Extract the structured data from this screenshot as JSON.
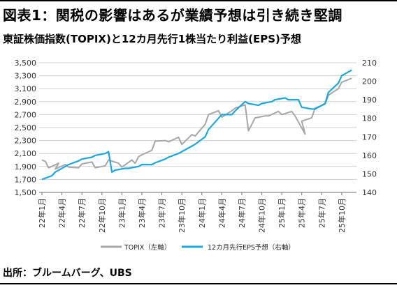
{
  "title": "図表1：関税の影響はあるが業績予想は引き続き堅調",
  "subtitle": "東証株価指数(TOPIX)と12カ月先行1株当たり利益(EPS)予想",
  "source": "出所：ブルームバーグ、UBS",
  "colors": {
    "topix": "#a6a6a6",
    "eps": "#1aa7dc",
    "grid": "#cfcfcf",
    "axis": "#6e6e6e"
  },
  "chart_data": {
    "type": "line",
    "title": "東証株価指数(TOPIX)と12カ月先行1株当たり利益(EPS)予想",
    "x_tick_labels": [
      "22年1月",
      "22年4月",
      "22年7月",
      "22年10月",
      "23年1月",
      "23年4月",
      "23年7月",
      "23年10月",
      "24年1月",
      "24年4月",
      "24年7月",
      "24年10月",
      "25年1月",
      "25年4月",
      "25年7月",
      "25年10月"
    ],
    "y_left": {
      "ylim": [
        1500,
        3500
      ],
      "ticks": [
        "1,500",
        "1,700",
        "1,900",
        "2,100",
        "2,300",
        "2,500",
        "2,700",
        "2,900",
        "3,100",
        "3,300",
        "3,500"
      ]
    },
    "y_right": {
      "ylim": [
        140,
        210
      ],
      "ticks": [
        "140",
        "150",
        "160",
        "170",
        "180",
        "190",
        "200",
        "210"
      ]
    },
    "grid": "horizontal",
    "legend_position": "bottom-center",
    "series": [
      {
        "name": "TOPIX（左軸）",
        "axis": "left",
        "color": "#a6a6a6",
        "x": [
          "2022-01",
          "2022-01",
          "2022-02",
          "2022-03",
          "2022-03",
          "2022-04",
          "2022-05",
          "2022-06",
          "2022-07",
          "2022-08",
          "2022-09",
          "2022-10",
          "2022-11",
          "2022-12",
          "2023-01",
          "2023-02",
          "2023-03",
          "2023-03",
          "2023-04",
          "2023-05",
          "2023-06",
          "2023-07",
          "2023-08",
          "2023-09",
          "2023-10",
          "2023-11",
          "2023-12",
          "2024-01",
          "2024-02",
          "2024-03",
          "2024-04",
          "2024-05",
          "2024-06",
          "2024-07",
          "2024-08",
          "2024-08",
          "2024-09",
          "2024-10",
          "2024-11",
          "2024-12",
          "2025-01",
          "2025-02",
          "2025-03",
          "2025-04",
          "2025-04",
          "2025-05",
          "2025-06",
          "2025-07",
          "2025-08",
          "2025-09",
          "2025-10",
          "2025-11"
        ],
        "values": [
          2000,
          1980,
          1880,
          1950,
          1860,
          1930,
          1890,
          1880,
          1940,
          1970,
          1880,
          1910,
          2000,
          1950,
          1890,
          2000,
          1950,
          2050,
          2080,
          2150,
          2290,
          2300,
          2280,
          2350,
          2240,
          2390,
          2370,
          2550,
          2700,
          2760,
          2660,
          2760,
          2800,
          2850,
          2450,
          2550,
          2650,
          2680,
          2680,
          2750,
          2700,
          2750,
          2680,
          2400,
          2600,
          2650,
          2800,
          2860,
          3000,
          3100,
          3200,
          3260
        ]
      },
      {
        "name": "12カ月先行EPS予想（右軸）",
        "axis": "right",
        "color": "#1aa7dc",
        "x": [
          "2022-01",
          "2022-02",
          "2022-03",
          "2022-04",
          "2022-05",
          "2022-06",
          "2022-07",
          "2022-08",
          "2022-09",
          "2022-10",
          "2022-11",
          "2022-11",
          "2022-12",
          "2023-01",
          "2023-02",
          "2023-03",
          "2023-04",
          "2023-05",
          "2023-06",
          "2023-07",
          "2023-08",
          "2023-09",
          "2023-10",
          "2023-11",
          "2023-12",
          "2024-01",
          "2024-02",
          "2024-03",
          "2024-04",
          "2024-05",
          "2024-06",
          "2024-07",
          "2024-08",
          "2024-09",
          "2024-10",
          "2024-11",
          "2024-12",
          "2025-01",
          "2025-02",
          "2025-03",
          "2025-04",
          "2025-05",
          "2025-06",
          "2025-07",
          "2025-08",
          "2025-09",
          "2025-10",
          "2025-11"
        ],
        "values": [
          147,
          149,
          151,
          154,
          155,
          157,
          158,
          159,
          160,
          161,
          162,
          151,
          152,
          153,
          153,
          154,
          155,
          155,
          156,
          158,
          159,
          161,
          162,
          165,
          166,
          170,
          174,
          180,
          182,
          182,
          184,
          189,
          188,
          187,
          188,
          189,
          190,
          191,
          190,
          190,
          186,
          185,
          185,
          188,
          194,
          199,
          203,
          206
        ]
      }
    ]
  }
}
